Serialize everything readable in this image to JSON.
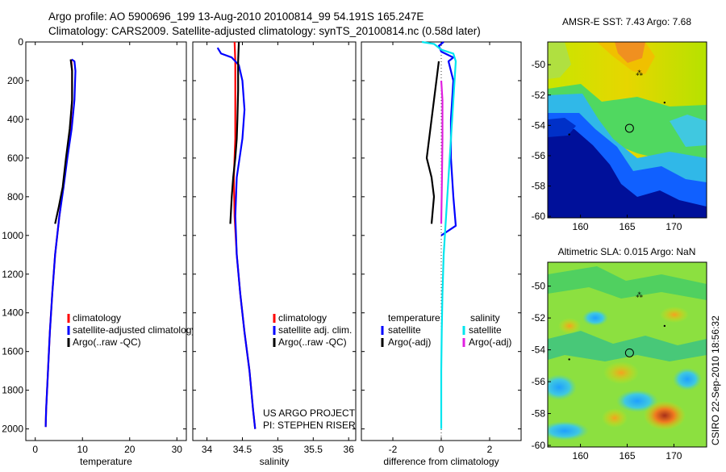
{
  "figure": {
    "title_line1": "Argo profile: AO 5900696_199 13-Aug-2010 20100814_99 54.191S 165.247E",
    "title_line2": "Climatology: CARS2009. Satellite-adjusted climatology: synTS_20100814.nc (0.58d later)",
    "credit": "CSIRO 22-Sep-2010 18:56:32",
    "project_line1": "US ARGO PROJECT",
    "project_line2": "PI: STEPHEN RISER"
  },
  "colors": {
    "climatology": "#ff0000",
    "satellite": "#0000ff",
    "argo": "#000000",
    "satellite_diff_salinity": "#00e5ee",
    "argo_diff_salinity": "#e020e0"
  },
  "chart_data": [
    {
      "id": "temperature",
      "type": "line",
      "xlabel": "temperature",
      "ylabel": "",
      "xlim": [
        -2,
        32
      ],
      "ylim": [
        2060,
        0
      ],
      "xticks": [
        0,
        10,
        20,
        30
      ],
      "xtick_labels": [
        "0",
        "10",
        "20",
        "30"
      ],
      "yticks": [
        0,
        200,
        400,
        600,
        800,
        1000,
        1200,
        1400,
        1600,
        1800,
        2000
      ],
      "ytick_labels": [
        "0",
        "200",
        "400",
        "600",
        "800",
        "1000",
        "1200",
        "1400",
        "1600",
        "1800",
        "2000"
      ],
      "legend": {
        "placement": "lower-right",
        "entries": [
          "climatology",
          "satellite-adjusted climatology",
          "Argo(..raw -QC)"
        ]
      },
      "series": [
        {
          "name": "climatology",
          "color": "#ff0000",
          "points": [
            [
              7.6,
              90
            ],
            [
              7.8,
              150
            ],
            [
              7.8,
              300
            ],
            [
              7.4,
              450
            ],
            [
              6.6,
              600
            ],
            [
              5.9,
              750
            ],
            [
              5.1,
              900
            ],
            [
              4.2,
              1100
            ],
            [
              3.6,
              1300
            ],
            [
              3.1,
              1500
            ],
            [
              2.7,
              1700
            ],
            [
              2.3,
              1900
            ],
            [
              2.2,
              1990
            ]
          ]
        },
        {
          "name": "satellite-adjusted climatology",
          "color": "#0000ff",
          "points": [
            [
              7.7,
              90
            ],
            [
              8.3,
              100
            ],
            [
              8.5,
              150
            ],
            [
              8.3,
              300
            ],
            [
              7.7,
              450
            ],
            [
              6.8,
              600
            ],
            [
              6.0,
              750
            ],
            [
              5.1,
              900
            ],
            [
              4.2,
              1100
            ],
            [
              3.6,
              1300
            ],
            [
              3.1,
              1500
            ],
            [
              2.7,
              1700
            ],
            [
              2.3,
              1900
            ],
            [
              2.2,
              1990
            ]
          ]
        },
        {
          "name": "Argo(..raw -QC)",
          "color": "#000000",
          "points": [
            [
              7.5,
              90
            ],
            [
              7.8,
              150
            ],
            [
              7.8,
              300
            ],
            [
              7.3,
              450
            ],
            [
              6.5,
              600
            ],
            [
              5.8,
              750
            ],
            [
              5.0,
              850
            ],
            [
              4.2,
              940
            ]
          ]
        }
      ]
    },
    {
      "id": "salinity",
      "type": "line",
      "xlabel": "salinity",
      "ylabel": "",
      "xlim": [
        33.8,
        36.1
      ],
      "ylim": [
        2060,
        0
      ],
      "xticks": [
        34,
        34.5,
        35,
        35.5,
        36
      ],
      "xtick_labels": [
        "34",
        "34.5",
        "35",
        "35.5",
        "36"
      ],
      "legend": {
        "placement": "lower-right",
        "entries": [
          "climatology",
          "satellite adj. clim.",
          "Argo(..raw -QC)"
        ]
      },
      "series": [
        {
          "name": "climatology",
          "color": "#ff0000",
          "points": [
            [
              34.39,
              0
            ],
            [
              34.4,
              100
            ],
            [
              34.4,
              300
            ],
            [
              34.4,
              500
            ],
            [
              34.38,
              700
            ],
            [
              34.39,
              900
            ],
            [
              34.42,
              1100
            ],
            [
              34.47,
              1300
            ],
            [
              34.53,
              1500
            ],
            [
              34.6,
              1700
            ],
            [
              34.65,
              1900
            ],
            [
              34.68,
              2000
            ]
          ]
        },
        {
          "name": "satellite adj. clim.",
          "color": "#0000ff",
          "points": [
            [
              34.15,
              30
            ],
            [
              34.2,
              60
            ],
            [
              34.35,
              80
            ],
            [
              34.45,
              120
            ],
            [
              34.5,
              200
            ],
            [
              34.53,
              350
            ],
            [
              34.5,
              500
            ],
            [
              34.46,
              600
            ],
            [
              34.42,
              700
            ],
            [
              34.4,
              900
            ],
            [
              34.42,
              1100
            ],
            [
              34.47,
              1300
            ],
            [
              34.53,
              1500
            ],
            [
              34.6,
              1700
            ],
            [
              34.65,
              1900
            ],
            [
              34.68,
              2000
            ]
          ]
        },
        {
          "name": "Argo(..raw -QC)",
          "color": "#000000",
          "points": [
            [
              34.45,
              0
            ],
            [
              34.44,
              100
            ],
            [
              34.44,
              250
            ],
            [
              34.43,
              400
            ],
            [
              34.42,
              500
            ],
            [
              34.4,
              600
            ],
            [
              34.37,
              700
            ],
            [
              34.35,
              800
            ],
            [
              34.33,
              940
            ]
          ]
        }
      ]
    },
    {
      "id": "difference",
      "type": "line",
      "xlabel": "difference from climatology",
      "ylabel": "",
      "xlim": [
        -3.3,
        3.3
      ],
      "ylim": [
        2060,
        0
      ],
      "xticks": [
        -2,
        0,
        2
      ],
      "xtick_labels": [
        "-2",
        "0",
        "2"
      ],
      "zero_line": 0,
      "legend": {
        "placement": "lower-center",
        "temperature_header": "temperature",
        "salinity_header": "salinity",
        "temperature_entries": [
          "satellite",
          "Argo(-adj)"
        ],
        "salinity_entries": [
          "satellite",
          "Argo(-adj)"
        ]
      },
      "series": [
        {
          "name": "temperature satellite",
          "color": "#0000ff",
          "points": [
            [
              0.1,
              0
            ],
            [
              -0.1,
              20
            ],
            [
              0.0,
              50
            ],
            [
              0.5,
              80
            ],
            [
              0.3,
              100
            ],
            [
              0.5,
              200
            ],
            [
              0.4,
              400
            ],
            [
              0.4,
              600
            ],
            [
              0.5,
              800
            ],
            [
              0.6,
              950
            ],
            [
              0.0,
              1000
            ]
          ]
        },
        {
          "name": "temperature Argo(-adj)",
          "color": "#000000",
          "points": [
            [
              -0.1,
              100
            ],
            [
              -0.2,
              200
            ],
            [
              -0.3,
              300
            ],
            [
              -0.4,
              400
            ],
            [
              -0.5,
              500
            ],
            [
              -0.6,
              600
            ],
            [
              -0.4,
              700
            ],
            [
              -0.3,
              800
            ],
            [
              -0.4,
              940
            ]
          ]
        },
        {
          "name": "salinity satellite",
          "color": "#00e5ee",
          "points": [
            [
              -0.8,
              0
            ],
            [
              -0.3,
              10
            ],
            [
              0.0,
              40
            ],
            [
              0.5,
              60
            ],
            [
              0.6,
              100
            ],
            [
              0.5,
              300
            ],
            [
              0.4,
              500
            ],
            [
              0.3,
              700
            ],
            [
              0.2,
              900
            ],
            [
              0.1,
              1100
            ],
            [
              0.05,
              1300
            ],
            [
              0.02,
              1500
            ],
            [
              0.0,
              1700
            ],
            [
              0.0,
              1900
            ],
            [
              0.0,
              2000
            ]
          ]
        },
        {
          "name": "salinity Argo(-adj)",
          "color": "#e020e0",
          "points": [
            [
              0.0,
              200
            ],
            [
              0.05,
              300
            ],
            [
              0.05,
              500
            ],
            [
              0.03,
              700
            ],
            [
              0.0,
              940
            ]
          ]
        }
      ]
    },
    {
      "id": "sst_map",
      "type": "heatmap",
      "title": "AMSR-E SST: 7.43 Argo: 7.68",
      "xlim": [
        156.5,
        173.5
      ],
      "ylim": [
        -60.1,
        -48.5
      ],
      "xticks": [
        160,
        165,
        170
      ],
      "xtick_labels": [
        "160",
        "165",
        "170"
      ],
      "yticks": [
        -50,
        -52,
        -54,
        -56,
        -58,
        -60
      ],
      "ytick_labels": [
        "-50",
        "-52",
        "-54",
        "-56",
        "-58",
        "-60"
      ],
      "profile_marker": [
        165.247,
        -54.191
      ]
    },
    {
      "id": "sla_map",
      "type": "heatmap",
      "title": "Altimetric SLA: 0.015 Argo: NaN",
      "xlim": [
        156.5,
        173.5
      ],
      "ylim": [
        -60.1,
        -48.5
      ],
      "xticks": [
        160,
        165,
        170
      ],
      "xtick_labels": [
        "160",
        "165",
        "170"
      ],
      "yticks": [
        -50,
        -52,
        -54,
        -56,
        -58,
        -60
      ],
      "ytick_labels": [
        "-50",
        "-52",
        "-54",
        "-56",
        "-58",
        "-60"
      ],
      "profile_marker": [
        165.247,
        -54.191
      ]
    }
  ]
}
